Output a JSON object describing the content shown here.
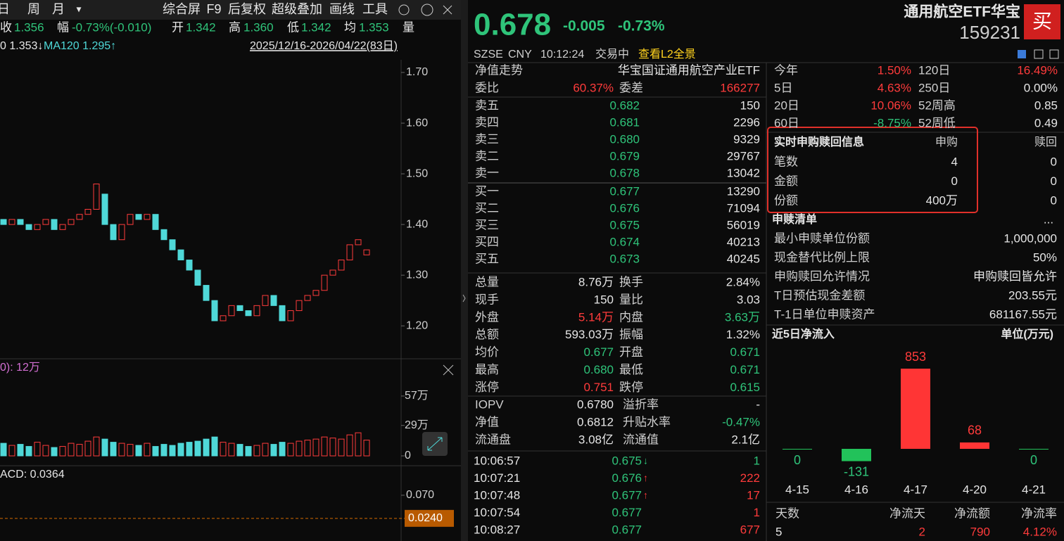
{
  "toolbar": {
    "period": [
      "日",
      "周",
      "月"
    ],
    "dropdown": "▾",
    "menu": [
      "综合屏",
      "F9",
      "后复权",
      "超级叠加",
      "画线",
      "工具"
    ]
  },
  "quote_line": {
    "items": [
      [
        "收",
        "1.356"
      ],
      [
        "幅",
        "-0.73%(-0.010)"
      ],
      [
        "开",
        "1.342"
      ],
      [
        "高",
        "1.360"
      ],
      [
        "低",
        "1.342"
      ],
      [
        "均",
        "1.353"
      ]
    ],
    "volume_label": "量"
  },
  "ma_line": {
    "items": [
      "0 1.353↓",
      "MA120 1.295↑"
    ],
    "date_range": "2025/12/16-2026/04/22(83日)"
  },
  "price_chart": {
    "type": "candlestick",
    "open": [
      1.41,
      1.4,
      1.41,
      1.4,
      1.39,
      1.4,
      1.41,
      1.39,
      1.4,
      1.41,
      1.42,
      1.43,
      1.46,
      1.4,
      1.37,
      1.4,
      1.42,
      1.41,
      1.42,
      1.39,
      1.37,
      1.35,
      1.33,
      1.31,
      1.28,
      1.25,
      1.21,
      1.22,
      1.24,
      1.23,
      1.22,
      1.24,
      1.26,
      1.24,
      1.21,
      1.23,
      1.25,
      1.26,
      1.27,
      1.3,
      1.31,
      1.33,
      1.36,
      1.34
    ],
    "close": [
      1.4,
      1.41,
      1.4,
      1.39,
      1.4,
      1.41,
      1.39,
      1.4,
      1.41,
      1.42,
      1.43,
      1.48,
      1.4,
      1.37,
      1.4,
      1.42,
      1.41,
      1.42,
      1.39,
      1.37,
      1.35,
      1.33,
      1.31,
      1.28,
      1.25,
      1.21,
      1.22,
      1.24,
      1.23,
      1.22,
      1.24,
      1.26,
      1.24,
      1.21,
      1.23,
      1.25,
      1.26,
      1.27,
      1.3,
      1.31,
      1.33,
      1.36,
      1.37,
      1.35
    ],
    "ylim": [
      1.135,
      1.725
    ],
    "yticks": [
      {
        "value": 1.7,
        "label": "1.70"
      },
      {
        "value": 1.6,
        "label": "1.60"
      },
      {
        "value": 1.5,
        "label": "1.50"
      },
      {
        "value": 1.4,
        "label": "1.40"
      },
      {
        "value": 1.3,
        "label": "1.30"
      },
      {
        "value": 1.2,
        "label": "1.20"
      }
    ],
    "up_color": "#ff3b3b",
    "down_color": "#4fd8d8"
  },
  "volume_chart": {
    "type": "bar",
    "title": "0): 12万",
    "values": [
      12,
      10,
      11,
      9,
      13,
      10,
      8,
      9,
      12,
      11,
      14,
      18,
      16,
      13,
      12,
      11,
      10,
      12,
      9,
      11,
      10,
      12,
      13,
      14,
      16,
      18,
      13,
      12,
      11,
      9,
      10,
      12,
      11,
      13,
      12,
      14,
      15,
      16,
      18,
      17,
      16,
      20,
      22,
      15
    ],
    "ylim": [
      0,
      67
    ],
    "yticks": [
      {
        "value": 57,
        "label": "57万"
      },
      {
        "value": 29,
        "label": "29万"
      },
      0
    ]
  },
  "macd_chart": {
    "title": "ACD: 0.0364",
    "ylim": [
      -0.021,
      0.0895
    ],
    "yticks": [
      {
        "value": 0.07,
        "label": "0.070"
      }
    ],
    "current": {
      "value": 0.024,
      "label": "0.0240"
    }
  },
  "header": {
    "price": "0.678",
    "change": "-0.005",
    "change_pct": "-0.73%",
    "name": "通用航空ETF华宝",
    "code": "159231",
    "buy": "买",
    "market": [
      "SZSE",
      "CNY",
      "10:12:24",
      "交易中"
    ],
    "l2_link": "查看L2全景"
  },
  "nav": [
    "净值走势",
    "华宝国证通用航空产业ETF"
  ],
  "ratio": [
    "委比",
    "60.37%",
    "委差",
    "166277"
  ],
  "asks": [
    [
      "卖五",
      "0.682",
      "150"
    ],
    [
      "卖四",
      "0.681",
      "2296"
    ],
    [
      "卖三",
      "0.680",
      "9329"
    ],
    [
      "卖二",
      "0.679",
      "29767"
    ],
    [
      "卖一",
      "0.678",
      "13042"
    ]
  ],
  "bids": [
    [
      "买一",
      "0.677",
      "13290"
    ],
    [
      "买二",
      "0.676",
      "71094"
    ],
    [
      "买三",
      "0.675",
      "56019"
    ],
    [
      "买四",
      "0.674",
      "40213"
    ],
    [
      "买五",
      "0.673",
      "40245"
    ]
  ],
  "stats": [
    [
      "总量",
      "8.76万",
      "换手",
      "2.84%"
    ],
    [
      "现手",
      "150",
      "量比",
      "3.03"
    ],
    [
      "外盘",
      "5.14万",
      "内盘",
      "3.63万"
    ],
    [
      "总额",
      "593.03万",
      "振幅",
      "1.32%"
    ],
    [
      "均价",
      "0.677",
      "开盘",
      "0.671"
    ],
    [
      "最高",
      "0.680",
      "最低",
      "0.671"
    ],
    [
      "涨停",
      "0.751",
      "跌停",
      "0.615"
    ]
  ],
  "iopv": [
    [
      "IOPV",
      "0.6780",
      "溢折率",
      "-"
    ],
    [
      "净值",
      "0.6812",
      "升贴水率",
      "-0.47%"
    ],
    [
      "流通盘",
      "3.08亿",
      "流通值",
      "2.1亿"
    ]
  ],
  "trades": [
    [
      "10:06:57",
      "0.675",
      "↓",
      "1"
    ],
    [
      "10:07:21",
      "0.676",
      "↑",
      "222"
    ],
    [
      "10:07:48",
      "0.677",
      "↑",
      "17"
    ],
    [
      "10:07:54",
      "0.677",
      "1"
    ],
    [
      "10:08:27",
      "0.677",
      "677"
    ]
  ],
  "performance": [
    [
      "今年",
      "1.50%",
      "120日",
      "16.49%"
    ],
    [
      "5日",
      "4.63%",
      "250日",
      "0.00%"
    ],
    [
      "20日",
      "10.06%",
      "52周高",
      "0.85"
    ],
    [
      "60日",
      "-8.75%",
      "52周低",
      "0.49"
    ]
  ],
  "creation": {
    "title": "实时申购赎回信息",
    "headers": [
      "申购",
      "赎回"
    ],
    "rows": [
      [
        "笔数",
        "4",
        "0"
      ],
      [
        "金额",
        "0",
        "0"
      ],
      [
        "份额",
        "400万",
        "0"
      ]
    ]
  },
  "redemption_list": {
    "title": "申赎清单",
    "more": "...",
    "rows": [
      [
        "最小申赎单位份额",
        "1,000,000"
      ],
      [
        "现金替代比例上限",
        "50%"
      ],
      [
        "申购赎回允许情况",
        "申购赎回皆允许"
      ],
      [
        "T日预估现金差额",
        "203.55元"
      ],
      [
        "T-1日单位申赎资产",
        "681167.55元"
      ]
    ]
  },
  "chart_data": {
    "type": "bar",
    "title": "近5日净流入",
    "unit": "单位(万元)",
    "categories": [
      "4-15",
      "4-16",
      "4-17",
      "4-20",
      "4-21"
    ],
    "values": [
      0,
      -131,
      853,
      68,
      0
    ],
    "up_color": "#ff3535",
    "down_color": "#22c25a"
  },
  "summary": {
    "headers": [
      "天数",
      "净流天",
      "净流额",
      "净流率"
    ],
    "values": [
      "5",
      "2",
      "790",
      "4.12%"
    ]
  }
}
